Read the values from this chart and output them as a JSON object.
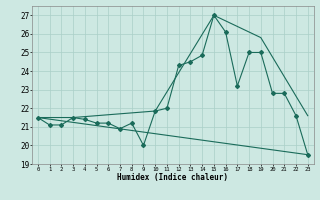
{
  "xlabel": "Humidex (Indice chaleur)",
  "xlim": [
    -0.5,
    23.5
  ],
  "ylim": [
    19,
    27.5
  ],
  "yticks": [
    19,
    20,
    21,
    22,
    23,
    24,
    25,
    26,
    27
  ],
  "xticks": [
    0,
    1,
    2,
    3,
    4,
    5,
    6,
    7,
    8,
    9,
    10,
    11,
    12,
    13,
    14,
    15,
    16,
    17,
    18,
    19,
    20,
    21,
    22,
    23
  ],
  "bg_color": "#cde8e2",
  "grid_color": "#aacfc8",
  "line_color": "#1a6b5a",
  "line1_x": [
    0,
    1,
    2,
    3,
    4,
    5,
    6,
    7,
    8,
    9,
    10,
    11,
    12,
    13,
    14,
    15,
    16,
    17,
    18,
    19,
    20,
    21,
    22,
    23
  ],
  "line1_y": [
    21.5,
    21.1,
    21.1,
    21.5,
    21.4,
    21.2,
    21.2,
    20.9,
    21.2,
    20.0,
    21.85,
    22.0,
    24.3,
    24.5,
    24.85,
    27.0,
    26.1,
    23.2,
    25.0,
    25.0,
    22.8,
    22.8,
    21.6,
    19.5
  ],
  "line2_x": [
    0,
    3,
    10,
    15,
    19,
    23
  ],
  "line2_y": [
    21.5,
    21.5,
    21.85,
    27.0,
    25.8,
    21.6
  ],
  "line3_x": [
    0,
    23
  ],
  "line3_y": [
    21.5,
    19.5
  ]
}
